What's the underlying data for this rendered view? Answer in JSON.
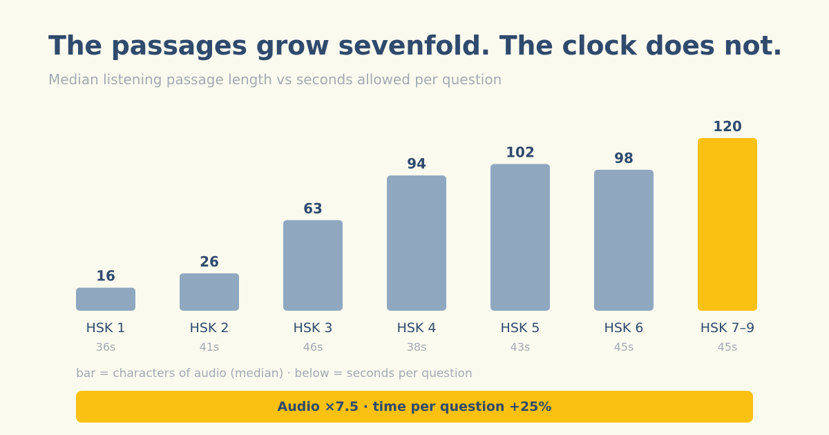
{
  "header": {
    "title": "The passages grow sevenfold. The clock does not.",
    "subtitle": "Median listening passage length vs seconds allowed per question"
  },
  "chart_data": {
    "type": "bar",
    "categories": [
      "HSK 1",
      "HSK 2",
      "HSK 3",
      "HSK 4",
      "HSK 5",
      "HSK 6",
      "HSK 7–9"
    ],
    "values": [
      16,
      26,
      63,
      94,
      102,
      98,
      120
    ],
    "seconds_per_question": [
      "36s",
      "41s",
      "46s",
      "38s",
      "43s",
      "45s",
      "45s"
    ],
    "highlight_index": 6,
    "ylim": [
      0,
      120
    ],
    "grid": false,
    "colors": {
      "bar": "#8fa8bf",
      "highlight": "#fbc112",
      "label": "#2f4a6d",
      "muted": "#a3aab3"
    }
  },
  "footnote": "bar = characters of audio (median) · below = seconds per question",
  "summary": "Audio ×7.5 · time per question +25%"
}
